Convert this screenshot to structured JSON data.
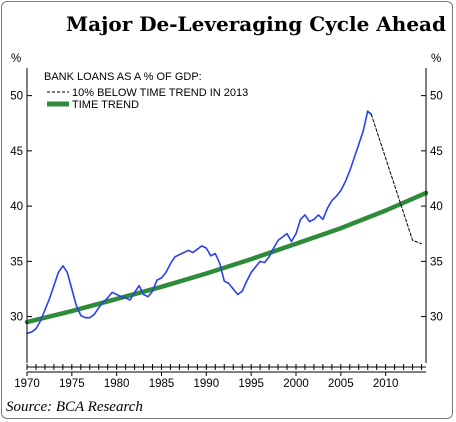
{
  "title": "Major De-Leveraging Cycle Ahead",
  "source": "Source: BCA Research",
  "chart_data": {
    "type": "line",
    "title": "Major De-Leveraging Cycle Ahead",
    "left_unit": "%",
    "right_unit": "%",
    "legend": {
      "heading": "BANK LOANS AS A % OF GDP:",
      "placement": "top-left",
      "entries": [
        {
          "label": "10% BELOW TIME TREND IN 2013",
          "style": "dashed",
          "color": "#000000"
        },
        {
          "label": "TIME TREND",
          "style": "solid-thick",
          "color": "#2e8b3a"
        }
      ]
    },
    "xlim": [
      1970,
      2014.5
    ],
    "ylim": [
      25.8,
      52.5
    ],
    "x_ticks": [
      1970,
      1975,
      1980,
      1985,
      1990,
      1995,
      2000,
      2005,
      2010
    ],
    "y_ticks": [
      30,
      35,
      40,
      45,
      50
    ],
    "grid": false,
    "series": [
      {
        "name": "BANK LOANS AS A % OF GDP:",
        "style": "solid",
        "color": "#2b3ff0",
        "x": [
          1970.0,
          1970.5,
          1971.0,
          1971.5,
          1972.0,
          1972.5,
          1973.0,
          1973.5,
          1974.0,
          1974.5,
          1975.0,
          1975.5,
          1976.0,
          1976.5,
          1977.0,
          1977.5,
          1978.0,
          1978.5,
          1979.0,
          1979.5,
          1980.0,
          1980.5,
          1981.0,
          1981.5,
          1982.0,
          1982.5,
          1983.0,
          1983.5,
          1984.0,
          1984.5,
          1985.0,
          1985.5,
          1986.0,
          1986.5,
          1987.0,
          1987.5,
          1988.0,
          1988.5,
          1989.0,
          1989.5,
          1990.0,
          1990.5,
          1991.0,
          1991.5,
          1992.0,
          1992.5,
          1993.0,
          1993.5,
          1994.0,
          1994.5,
          1995.0,
          1995.5,
          1996.0,
          1996.5,
          1997.0,
          1997.5,
          1998.0,
          1998.5,
          1999.0,
          1999.5,
          2000.0,
          2000.5,
          2001.0,
          2001.5,
          2002.0,
          2002.5,
          2003.0,
          2003.5,
          2004.0,
          2004.5,
          2005.0,
          2005.5,
          2006.0,
          2006.5,
          2007.0,
          2007.5,
          2008.0,
          2008.4
        ],
        "values": [
          28.5,
          28.6,
          28.9,
          29.6,
          30.6,
          31.6,
          32.8,
          34.0,
          34.6,
          34.0,
          32.5,
          31.0,
          30.1,
          29.9,
          29.9,
          30.2,
          30.8,
          31.3,
          31.7,
          32.2,
          32.0,
          31.8,
          31.7,
          31.5,
          32.2,
          32.8,
          32.0,
          31.8,
          32.3,
          33.3,
          33.5,
          34.0,
          34.8,
          35.4,
          35.6,
          35.8,
          36.0,
          35.8,
          36.1,
          36.4,
          36.2,
          35.5,
          35.7,
          34.8,
          33.2,
          33.0,
          32.5,
          32.0,
          32.3,
          33.2,
          34.0,
          34.5,
          35.0,
          34.9,
          35.4,
          36.2,
          36.9,
          37.2,
          37.5,
          36.8,
          37.5,
          38.8,
          39.2,
          38.6,
          38.8,
          39.2,
          38.8,
          39.8,
          40.5,
          40.9,
          41.4,
          42.2,
          43.2,
          44.4,
          45.6,
          46.8,
          48.6,
          48.3
        ]
      },
      {
        "name": "10% BELOW TIME TREND IN 2013",
        "style": "dashed",
        "color": "#000000",
        "x": [
          2008.4,
          2013.0,
          2014.0
        ],
        "values": [
          48.3,
          36.9,
          36.6
        ]
      },
      {
        "name": "TIME TREND",
        "style": "solid-thick",
        "color": "#2e8b3a",
        "x": [
          1970,
          1975,
          1980,
          1985,
          1990,
          1995,
          2000,
          2005,
          2010,
          2014.5
        ],
        "values": [
          29.5,
          30.5,
          31.6,
          32.7,
          33.9,
          35.2,
          36.6,
          38.0,
          39.6,
          41.2
        ]
      }
    ]
  }
}
